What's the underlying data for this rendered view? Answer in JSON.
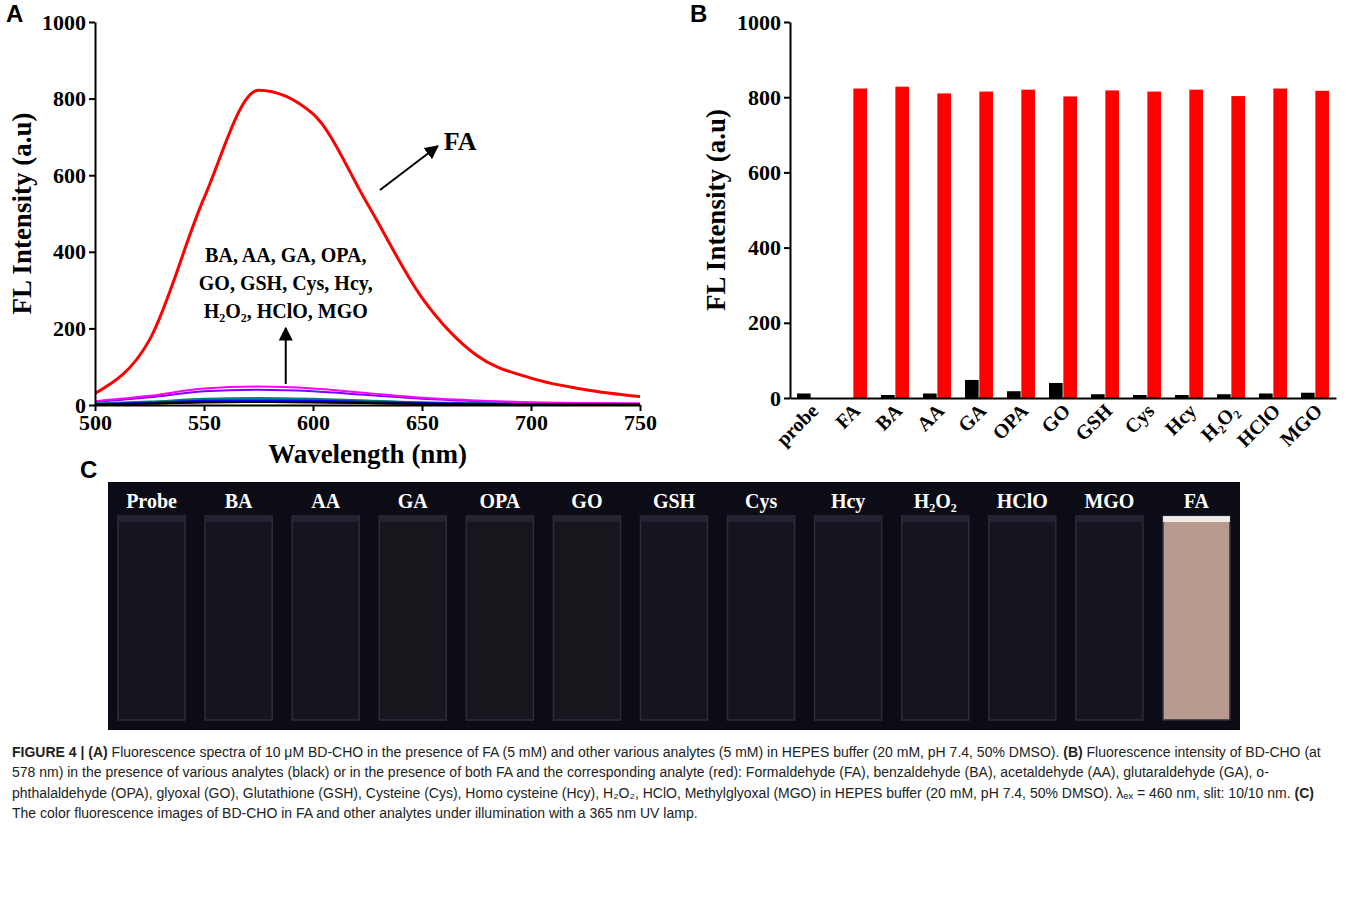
{
  "chart_data": [
    {
      "type": "line",
      "panel": "A",
      "xlabel": "Wavelength (nm)",
      "ylabel": "FL Intensity (a.u)",
      "x": [
        500,
        525,
        550,
        575,
        600,
        625,
        650,
        675,
        700,
        725,
        750
      ],
      "xlim": [
        500,
        750
      ],
      "xticks": [
        500,
        550,
        600,
        650,
        700,
        750
      ],
      "ylim": [
        0,
        1000
      ],
      "yticks": [
        0,
        200,
        400,
        600,
        800,
        1000
      ],
      "annotations": [
        "FA",
        "BA, AA, GA, OPA,",
        "GO, GSH, Cys, Hcy,",
        "H₂O₂, HClO, MGO"
      ],
      "series": [
        {
          "color": "#ff0000",
          "values": [
            30,
            170,
            540,
            822,
            760,
            525,
            280,
            130,
            70,
            40,
            22
          ]
        },
        {
          "color": "#000000",
          "values": [
            2,
            4,
            7,
            8,
            7,
            5,
            3,
            2,
            1,
            1,
            1
          ]
        },
        {
          "color": "#0000ff",
          "values": [
            2,
            6,
            11,
            12,
            11,
            8,
            5,
            3,
            2,
            1,
            1
          ]
        },
        {
          "color": "#ff00ff",
          "values": [
            10,
            24,
            43,
            48,
            43,
            31,
            19,
            12,
            7,
            5,
            4
          ]
        },
        {
          "color": "#008080",
          "values": [
            4,
            9,
            16,
            18,
            16,
            12,
            7,
            5,
            3,
            2,
            1
          ]
        },
        {
          "color": "#8000ff",
          "values": [
            8,
            20,
            36,
            40,
            36,
            26,
            16,
            10,
            6,
            4,
            3
          ]
        },
        {
          "color": "#000080",
          "values": [
            2,
            5,
            9,
            10,
            9,
            7,
            4,
            3,
            2,
            1,
            1
          ]
        },
        {
          "color": "#800000",
          "values": [
            2,
            4,
            7,
            8,
            7,
            5,
            3,
            2,
            1,
            1,
            1
          ]
        },
        {
          "color": "#808000",
          "values": [
            2,
            4,
            7,
            8,
            7,
            5,
            3,
            2,
            1,
            1,
            1
          ]
        },
        {
          "color": "#00aa00",
          "values": [
            2,
            5,
            9,
            10,
            9,
            7,
            4,
            3,
            2,
            1,
            1
          ]
        },
        {
          "color": "#00bfbf",
          "values": [
            2,
            6,
            11,
            12,
            11,
            8,
            5,
            3,
            2,
            1,
            1
          ]
        },
        {
          "color": "#8b4513",
          "values": [
            3,
            7,
            13,
            14,
            13,
            9,
            6,
            4,
            2,
            1,
            1
          ]
        }
      ]
    },
    {
      "type": "bar",
      "panel": "B",
      "ylabel": "FL Intensity (a.u)",
      "categories": [
        "probe",
        "FA",
        "BA",
        "AA",
        "GA",
        "OPA",
        "GO",
        "GSH",
        "Cys",
        "Hcy",
        "H₂O₂",
        "HClO",
        "MGO"
      ],
      "ylim": [
        0,
        1000
      ],
      "yticks": [
        0,
        200,
        400,
        600,
        800,
        1000
      ],
      "series": [
        {
          "color": "#000000",
          "values": [
            12,
            null,
            8,
            12,
            48,
            18,
            40,
            10,
            8,
            8,
            10,
            12,
            14
          ]
        },
        {
          "color": "#ff0000",
          "values": [
            null,
            823,
            828,
            810,
            815,
            820,
            802,
            818,
            815,
            820,
            803,
            823,
            817
          ]
        }
      ]
    }
  ],
  "photo": {
    "panel": "C",
    "cuvettes": [
      {
        "label": "Probe",
        "color": "#15151f"
      },
      {
        "label": "BA",
        "color": "#15151f"
      },
      {
        "label": "AA",
        "color": "#15151f"
      },
      {
        "label": "GA",
        "color": "#17161c"
      },
      {
        "label": "OPA",
        "color": "#17161c"
      },
      {
        "label": "GO",
        "color": "#17161c"
      },
      {
        "label": "GSH",
        "color": "#15151f"
      },
      {
        "label": "Cys",
        "color": "#15151f"
      },
      {
        "label": "Hcy",
        "color": "#15151f"
      },
      {
        "label": "H₂O₂",
        "color": "#15151f"
      },
      {
        "label": "HClO",
        "color": "#15151f"
      },
      {
        "label": "MGO",
        "color": "#15151f"
      },
      {
        "label": "FA",
        "color": "#b89a8e"
      }
    ]
  },
  "caption": {
    "label": "FIGURE 4 |",
    "parts": [
      {
        "letter": "(A)",
        "text": " Fluorescence spectra of 10 μM BD-CHO in the presence of FA (5 mM) and other various analytes (5 mM) in HEPES buffer (20 mM, pH 7.4, 50% DMSO). "
      },
      {
        "letter": "(B)",
        "text": " Fluorescence intensity of BD-CHO (at 578 nm) in the presence of various analytes (black) or in the presence of both FA and the corresponding analyte (red): Formaldehyde (FA), benzaldehyde (BA), acetaldehyde (AA), glutaraldehyde (GA), o-phthalaldehyde (OPA), glyoxal (GO), Glutathione (GSH), Cysteine (Cys), Homo cysteine (Hcy), H₂O₂, HClO, Methylglyoxal (MGO) in HEPES buffer (20 mM, pH 7.4, 50% DMSO). λₑₓ = 460 nm, slit: 10/10 nm. "
      },
      {
        "letter": "(C)",
        "text": " The color fluorescence images of BD-CHO in FA and other analytes under illumination with a 365 nm UV lamp."
      }
    ]
  }
}
